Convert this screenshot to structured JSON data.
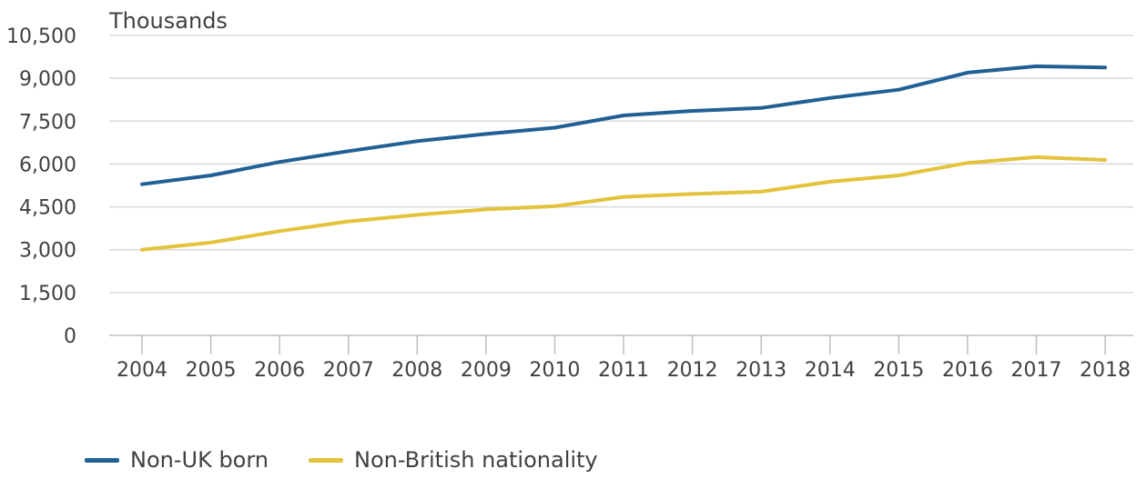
{
  "chart_data": {
    "type": "line",
    "ylabel": "Thousands",
    "categories": [
      "2004",
      "2005",
      "2006",
      "2007",
      "2008",
      "2009",
      "2010",
      "2011",
      "2012",
      "2013",
      "2014",
      "2015",
      "2016",
      "2017",
      "2018"
    ],
    "y_ticks": [
      0,
      1500,
      3000,
      4500,
      6000,
      7500,
      9000,
      10500
    ],
    "y_tick_labels": [
      "0",
      "1,500",
      "3,000",
      "4,500",
      "6,000",
      "7,500",
      "9,000",
      "10,500"
    ],
    "ylim": [
      0,
      10500
    ],
    "grid": true,
    "legend_position": "bottom-left",
    "series": [
      {
        "name": "Non-UK born",
        "color": "#206095",
        "values": [
          5290,
          5600,
          6070,
          6450,
          6800,
          7050,
          7270,
          7700,
          7860,
          7960,
          8310,
          8600,
          9200,
          9420,
          9380
        ]
      },
      {
        "name": "Non-British nationality",
        "color": "#e3c33c",
        "values": [
          3000,
          3250,
          3650,
          3990,
          4220,
          4410,
          4520,
          4850,
          4950,
          5030,
          5380,
          5600,
          6040,
          6240,
          6140
        ]
      }
    ]
  }
}
